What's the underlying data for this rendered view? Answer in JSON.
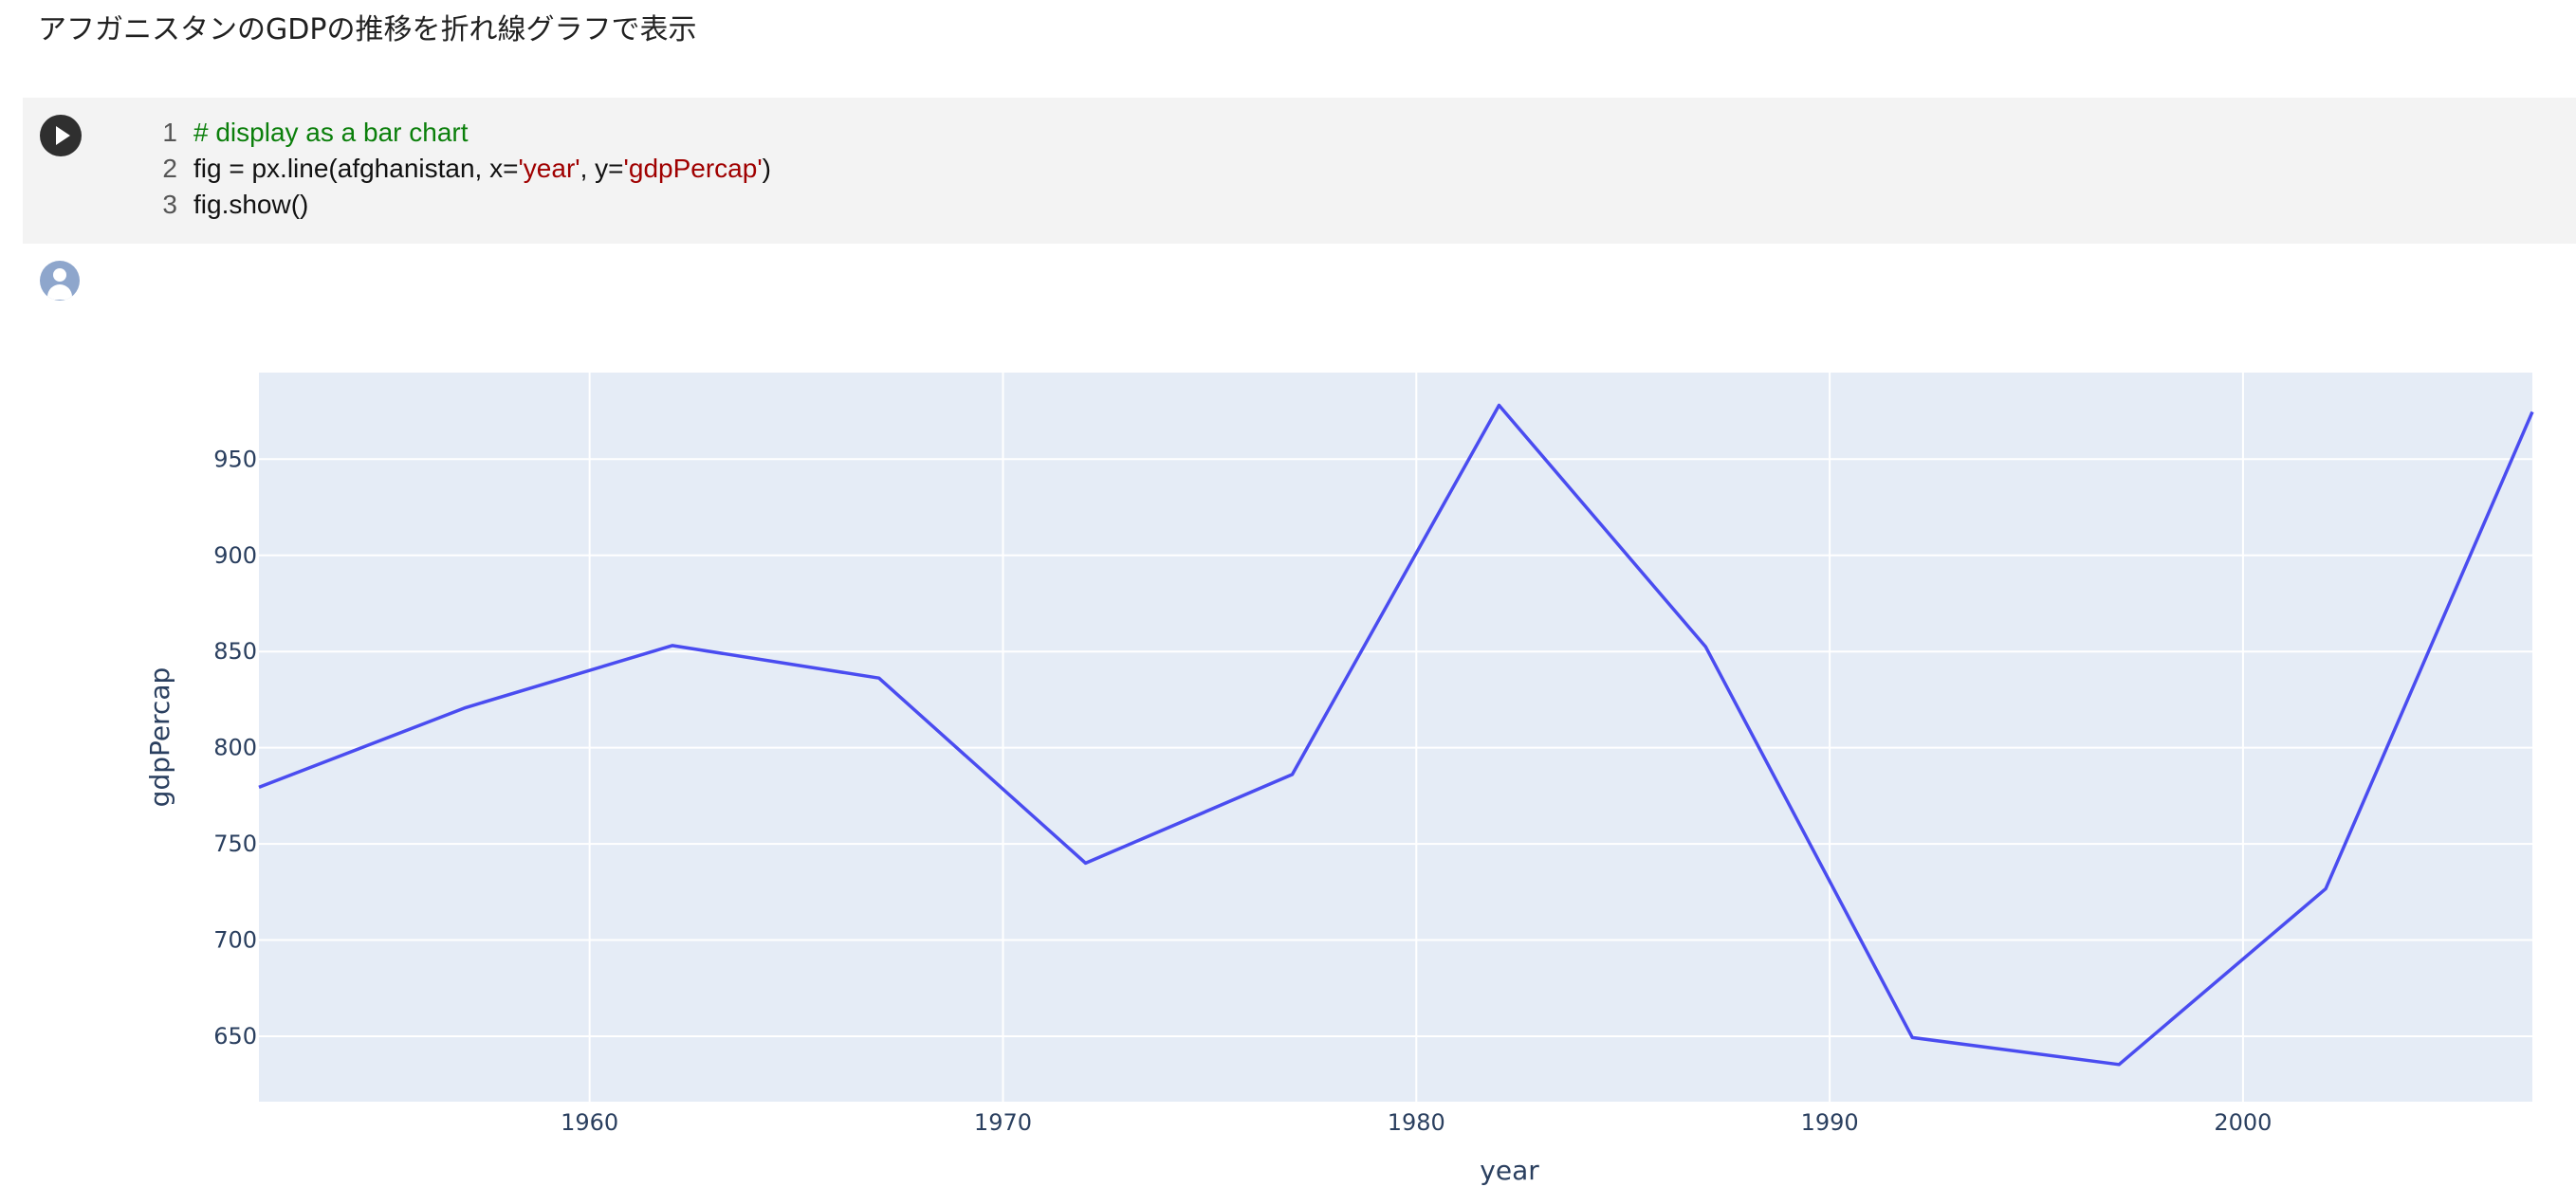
{
  "heading": "アフガニスタンのGDPの推移を折れ線グラフで表示",
  "code_cell": {
    "run_button_icon": "play-icon",
    "lines": [
      {
        "number": "1",
        "parts": [
          {
            "text": "# display as a bar chart",
            "kind": "comment"
          }
        ]
      },
      {
        "number": "2",
        "parts": [
          {
            "text": "fig = px.line(afghanistan, x=",
            "kind": "plain"
          },
          {
            "text": "'year'",
            "kind": "string"
          },
          {
            "text": ", y=",
            "kind": "plain"
          },
          {
            "text": "'gdpPercap'",
            "kind": "string"
          },
          {
            "text": ")",
            "kind": "plain"
          }
        ]
      },
      {
        "number": "3",
        "parts": [
          {
            "text": "fig.show()",
            "kind": "plain"
          }
        ]
      }
    ]
  },
  "output": {
    "avatar_icon": "user-avatar-icon"
  },
  "chart_data": {
    "type": "line",
    "x": [
      1952,
      1957,
      1962,
      1967,
      1972,
      1977,
      1982,
      1987,
      1992,
      1997,
      2002,
      2007
    ],
    "series": [
      {
        "values": [
          779.45,
          820.85,
          853.1,
          836.2,
          740.0,
          786.1,
          978.0,
          852.4,
          649.3,
          635.3,
          726.7,
          974.6
        ]
      }
    ],
    "xlim": [
      1952,
      2007
    ],
    "ylim": [
      616,
      995
    ],
    "xticks": [
      "1960",
      "1970",
      "1980",
      "1990",
      "2000"
    ],
    "yticks": [
      "650",
      "700",
      "750",
      "800",
      "850",
      "900",
      "950"
    ],
    "xlabel": "year",
    "ylabel": "gdpPercap",
    "colors": {
      "line": "#4a4cf0",
      "plot_background": "#e5ecf6",
      "grid": "#ffffff",
      "text": "#2a3f5f"
    },
    "grid": true
  }
}
